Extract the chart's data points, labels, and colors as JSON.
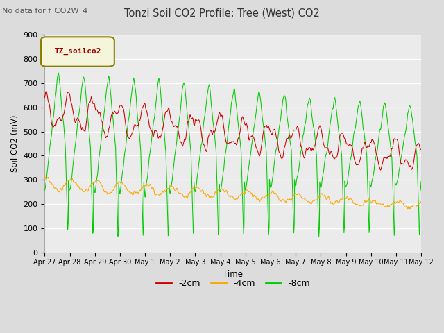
{
  "title": "Tonzi Soil CO2 Profile: Tree (West) CO2",
  "subtitle": "No data for f_CO2W_4",
  "ylabel": "Soil CO2 (mV)",
  "xlabel": "Time",
  "legend_label": "TZ_soilco2",
  "series_labels": [
    "-2cm",
    "-4cm",
    "-8cm"
  ],
  "series_colors": [
    "#cc0000",
    "#ffa500",
    "#00cc00"
  ],
  "ylim": [
    0,
    900
  ],
  "yticks": [
    0,
    100,
    200,
    300,
    400,
    500,
    600,
    700,
    800,
    900
  ],
  "xtick_labels": [
    "Apr 27",
    "Apr 28",
    "Apr 29",
    "Apr 30",
    "May 1",
    "May 2",
    "May 3",
    "May 4",
    "May 5",
    "May 6",
    "May 7",
    "May 8",
    "May 9",
    "May 10",
    "May 11",
    "May 12"
  ],
  "n_days": 15,
  "bg_color": "#dcdcdc",
  "plot_bg_color": "#ebebeb",
  "legend_box_facecolor": "#f5f5dc",
  "legend_box_edgecolor": "#8b8000"
}
